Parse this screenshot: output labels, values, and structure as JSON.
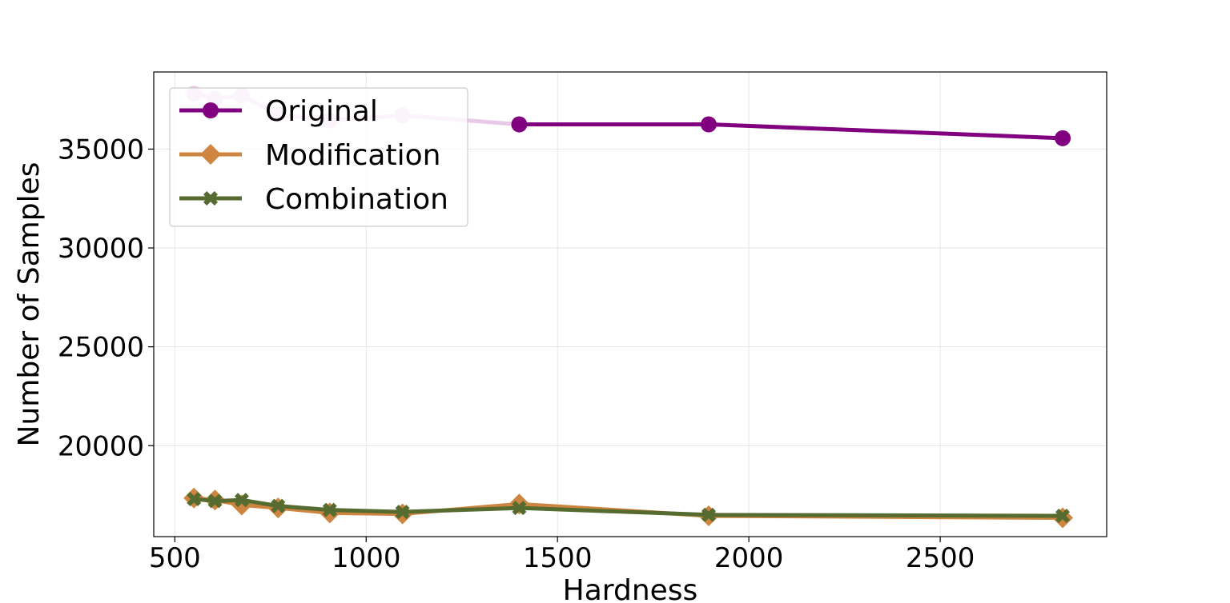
{
  "chart_data": {
    "type": "line",
    "title": "",
    "xlabel": "Hardness",
    "ylabel": "Number of Samples",
    "xlim": [
      445,
      2935
    ],
    "ylim": [
      15400,
      38900
    ],
    "xticks": [
      500,
      1000,
      1500,
      2000,
      2500
    ],
    "yticks": [
      20000,
      25000,
      30000,
      35000
    ],
    "grid": true,
    "legend_position": "top-left",
    "x": [
      550,
      605,
      675,
      770,
      905,
      1095,
      1400,
      1895,
      2820
    ],
    "series": [
      {
        "name": "Original",
        "color": "#800080",
        "faded_color": "#e8c9e8",
        "marker": "circle",
        "values": [
          37800,
          37550,
          37700,
          36750,
          36450,
          36700,
          36250,
          36250,
          35550
        ],
        "faded_points": 6
      },
      {
        "name": "Modification",
        "color": "#cd853f",
        "marker": "diamond",
        "values": [
          17350,
          17250,
          17000,
          16850,
          16600,
          16550,
          17050,
          16450,
          16350
        ]
      },
      {
        "name": "Combination",
        "color": "#556b2f",
        "marker": "x",
        "values": [
          17300,
          17200,
          17250,
          16950,
          16750,
          16650,
          16850,
          16500,
          16450
        ]
      }
    ]
  }
}
